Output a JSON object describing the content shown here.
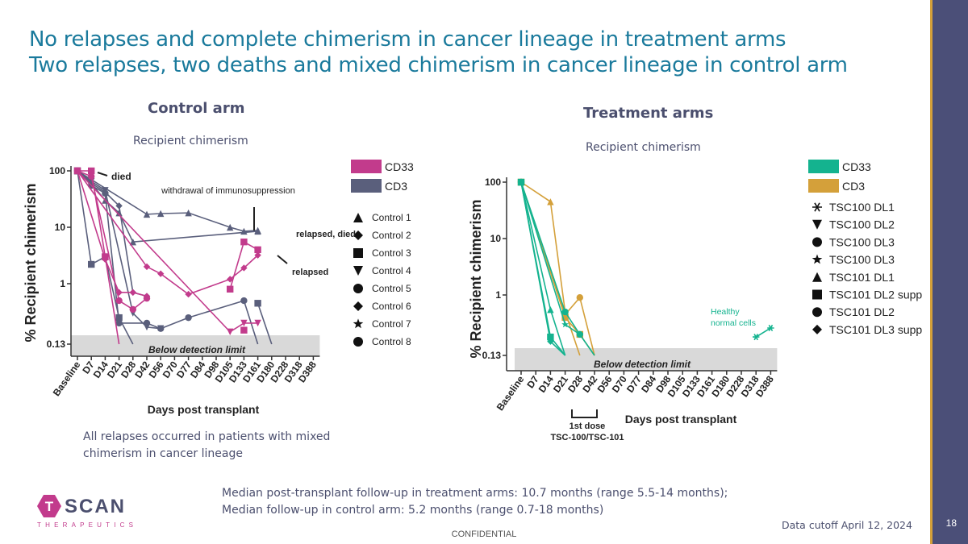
{
  "title_line1": "No relapses and complete chimerism in cancer lineage in treatment arms",
  "title_line2": "Two relapses, two deaths and mixed chimerism in cancer lineage in control arm",
  "page_number": "18",
  "confidential": "CONFIDENTIAL",
  "data_cutoff": "Data cutoff April 12, 2024",
  "logo": {
    "letters": [
      "T",
      "SCAN"
    ],
    "subtitle": "THERAPEUTICS"
  },
  "control_note": "All relapses occurred in patients with mixed chimerism in cancer lineage",
  "followup_line1": "Median post-transplant follow-up in treatment arms: 10.7 months (range 5.5-14 months);",
  "followup_line2": "Median follow-up in control arm: 5.2 months (range 0.7-18 months)",
  "colors": {
    "title": "#1a7a9c",
    "cd33_control": "#c23b8c",
    "cd3_control": "#5a5f7c",
    "cd33_treatment": "#14b38f",
    "cd3_treatment": "#d4a03a",
    "gray_band": "#d9d9d9"
  },
  "chart_data": [
    {
      "type": "line",
      "panel_title": "Control arm",
      "subtitle": "Recipient chimerism",
      "ylabel": "% Recipient chimerism",
      "xlabel": "Days post transplant",
      "yscale": "log",
      "yticks": [
        "100",
        "10",
        "1",
        "0.13"
      ],
      "categories": [
        "Baseline",
        "D7",
        "D14",
        "D21",
        "D28",
        "D42",
        "D56",
        "D70",
        "D77",
        "D84",
        "D98",
        "D105",
        "D133",
        "D161",
        "D180",
        "D228",
        "D318",
        "D388"
      ],
      "detection_band_label": "Below detection limit",
      "lineage_legend": [
        {
          "name": "CD33",
          "color": "#c23b8c"
        },
        {
          "name": "CD3",
          "color": "#5a5f7c"
        }
      ],
      "patient_legend": [
        "Control 1",
        "Control 2",
        "Control 3",
        "Control 4",
        "Control 5",
        "Control 6",
        "Control 7",
        "Control 8"
      ],
      "annotations": [
        "died",
        "withdrawal of immunosuppression",
        "relapsed, died",
        "relapsed"
      ],
      "series": [
        {
          "lineage": "CD3",
          "patient": "Control 1",
          "marker": "triangle",
          "points": [
            [
              "Baseline",
              100
            ],
            [
              "D7",
              60
            ],
            [
              "D14",
              30
            ],
            [
              "D21",
              18
            ],
            [
              "D28",
              5.5
            ],
            [
              "D161",
              8.5
            ]
          ]
        },
        {
          "lineage": "CD3",
          "patient": "Control 2",
          "marker": "diamond",
          "points": [
            [
              "Baseline",
              100
            ],
            [
              "D7",
              60
            ],
            [
              "D14",
              42
            ],
            [
              "D21",
              24
            ],
            [
              "D28",
              0.7
            ],
            [
              "D42",
              0.6
            ]
          ]
        },
        {
          "lineage": "CD3",
          "patient": "Control 3",
          "marker": "square",
          "points": [
            [
              "Baseline",
              100
            ],
            [
              "D7",
              2.2
            ],
            [
              "D14",
              3.0
            ],
            [
              "D21",
              0.25
            ],
            [
              "D28",
              0.08
            ]
          ]
        },
        {
          "lineage": "CD3",
          "patient": "Control 4",
          "marker": "inv-triangle",
          "points": [
            [
              "Baseline",
              100
            ],
            [
              "D7",
              65
            ],
            [
              "D14",
              45
            ],
            [
              "D28",
              0.3
            ],
            [
              "D42",
              0.17
            ],
            [
              "D56",
              0.16
            ]
          ]
        },
        {
          "lineage": "CD3",
          "patient": "Control 5",
          "marker": "circle",
          "points": [
            [
              "Baseline",
              100
            ],
            [
              "D7",
              55
            ],
            [
              "D14",
              40
            ],
            [
              "D21",
              0.2
            ],
            [
              "D42",
              0.2
            ],
            [
              "D56",
              0.16
            ],
            [
              "D77",
              0.25
            ],
            [
              "D133",
              0.5
            ],
            [
              "D161",
              0.1
            ]
          ]
        },
        {
          "lineage": "CD3",
          "patient": "Control 8",
          "marker": "triangle",
          "points": [
            [
              "Baseline",
              100
            ],
            [
              "D42",
              17
            ],
            [
              "D56",
              17.5
            ],
            [
              "D77",
              18
            ],
            [
              "D105",
              10
            ],
            [
              "D133",
              8.5
            ],
            [
              "D161",
              8.8
            ]
          ]
        },
        {
          "lineage": "CD3",
          "patient": "Control 7",
          "marker": "square",
          "points": [
            [
              "D161",
              0.45
            ],
            [
              "D180",
              0.08
            ]
          ]
        },
        {
          "lineage": "CD33",
          "patient": "Control 1",
          "marker": "square",
          "points": [
            [
              "Baseline",
              100
            ],
            [
              "D7",
              100
            ],
            [
              "D14",
              3.0
            ],
            [
              "D21",
              0.05
            ]
          ]
        },
        {
          "lineage": "CD33",
          "patient": "Control 2",
          "marker": "diamond",
          "points": [
            [
              "Baseline",
              100
            ],
            [
              "D14",
              2.7
            ],
            [
              "D21",
              0.7
            ],
            [
              "D28",
              0.7
            ],
            [
              "D42",
              0.6
            ]
          ]
        },
        {
          "lineage": "CD33",
          "patient": "Control 5",
          "marker": "circle",
          "points": [
            [
              "Baseline",
              100
            ],
            [
              "D7",
              80
            ],
            [
              "D21",
              0.5
            ],
            [
              "D28",
              0.35
            ],
            [
              "D42",
              0.55
            ]
          ]
        },
        {
          "lineage": "CD33",
          "patient": "Control 6",
          "marker": "diamond",
          "points": [
            [
              "Baseline",
              100
            ],
            [
              "D42",
              2.0
            ],
            [
              "D56",
              1.5
            ],
            [
              "D77",
              0.65
            ],
            [
              "D105",
              1.2
            ],
            [
              "D133",
              1.9
            ],
            [
              "D161",
              3.2
            ]
          ]
        },
        {
          "lineage": "CD33",
          "patient": "Control 4",
          "marker": "inv-triangle",
          "points": [
            [
              "Baseline",
              100
            ],
            [
              "D105",
              0.14
            ],
            [
              "D133",
              0.2
            ],
            [
              "D161",
              0.2
            ]
          ]
        },
        {
          "lineage": "CD33",
          "patient": "Control 8",
          "marker": "square",
          "points": [
            [
              "D105",
              0.8
            ],
            [
              "D133",
              5.5
            ],
            [
              "D161",
              4.0
            ]
          ]
        },
        {
          "lineage": "CD33",
          "patient": "Control 3",
          "marker": "square",
          "points": [
            [
              "D133",
              0.15
            ]
          ]
        }
      ]
    },
    {
      "type": "line",
      "panel_title": "Treatment arms",
      "subtitle": "Recipient chimerism",
      "ylabel": "% Recipient chimerism",
      "xlabel": "Days post transplant",
      "yscale": "log",
      "yticks": [
        "100",
        "10",
        "1",
        "0.13"
      ],
      "categories": [
        "Baseline",
        "D7",
        "D14",
        "D21",
        "D28",
        "D42",
        "D56",
        "D70",
        "D77",
        "D84",
        "D98",
        "D105",
        "D133",
        "D161",
        "D180",
        "D228",
        "D318",
        "D388"
      ],
      "detection_band_label": "Below detection limit",
      "lineage_legend": [
        {
          "name": "CD33",
          "color": "#14b38f"
        },
        {
          "name": "CD3",
          "color": "#d4a03a"
        }
      ],
      "patient_legend": [
        "TSC100 DL1",
        "TSC100 DL2",
        "TSC100 DL3",
        "TSC100 DL3",
        "TSC101 DL1",
        "TSC101 DL2 supp",
        "TSC101 DL2",
        "TSC101 DL3 supp"
      ],
      "annotations": [
        "Healthy normal cells",
        "1st dose TSC-100/TSC-101"
      ],
      "series": [
        {
          "lineage": "CD3",
          "patient": "TSC101 DL1",
          "marker": "triangle",
          "points": [
            [
              "Baseline",
              100
            ],
            [
              "D14",
              45
            ],
            [
              "D21",
              0.5
            ],
            [
              "D28",
              0.08
            ]
          ]
        },
        {
          "lineage": "CD3",
          "patient": "TSC100 DL3",
          "marker": "circle",
          "points": [
            [
              "Baseline",
              100
            ],
            [
              "D21",
              0.45
            ],
            [
              "D28",
              0.9
            ],
            [
              "D42",
              0.08
            ]
          ]
        },
        {
          "lineage": "CD3",
          "patient": "TSC101 DL2",
          "marker": "square",
          "points": [
            [
              "Baseline",
              100
            ],
            [
              "D21",
              0.4
            ],
            [
              "D28",
              0.2
            ],
            [
              "D42",
              0.08
            ]
          ]
        },
        {
          "lineage": "CD33",
          "patient": "TSC101 DL1",
          "marker": "triangle",
          "points": [
            [
              "Baseline",
              100
            ],
            [
              "D14",
              0.55
            ],
            [
              "D21",
              0.1
            ]
          ]
        },
        {
          "lineage": "CD33",
          "patient": "TSC101 DL2 supp",
          "marker": "square",
          "points": [
            [
              "Baseline",
              100
            ],
            [
              "D14",
              0.18
            ],
            [
              "D21",
              0.1
            ]
          ]
        },
        {
          "lineage": "CD33",
          "patient": "TSC101 DL3 supp",
          "marker": "diamond",
          "points": [
            [
              "Baseline",
              100
            ],
            [
              "D14",
              0.15
            ],
            [
              "D21",
              0.12
            ]
          ]
        },
        {
          "lineage": "CD33",
          "patient": "TSC100 DL3",
          "marker": "circle",
          "points": [
            [
              "Baseline",
              100
            ],
            [
              "D21",
              0.5
            ],
            [
              "D28",
              0.2
            ],
            [
              "D42",
              0.08
            ]
          ]
        },
        {
          "lineage": "CD33",
          "patient": "TSC100 DL2",
          "marker": "star",
          "points": [
            [
              "Baseline",
              100
            ],
            [
              "D21",
              0.3
            ],
            [
              "D28",
              0.2
            ]
          ]
        },
        {
          "lineage": "CD33",
          "patient": "TSC100 DL1",
          "marker": "asterisk",
          "points": [
            [
              "D318",
              0.18
            ],
            [
              "D388",
              0.26
            ]
          ]
        }
      ]
    }
  ]
}
